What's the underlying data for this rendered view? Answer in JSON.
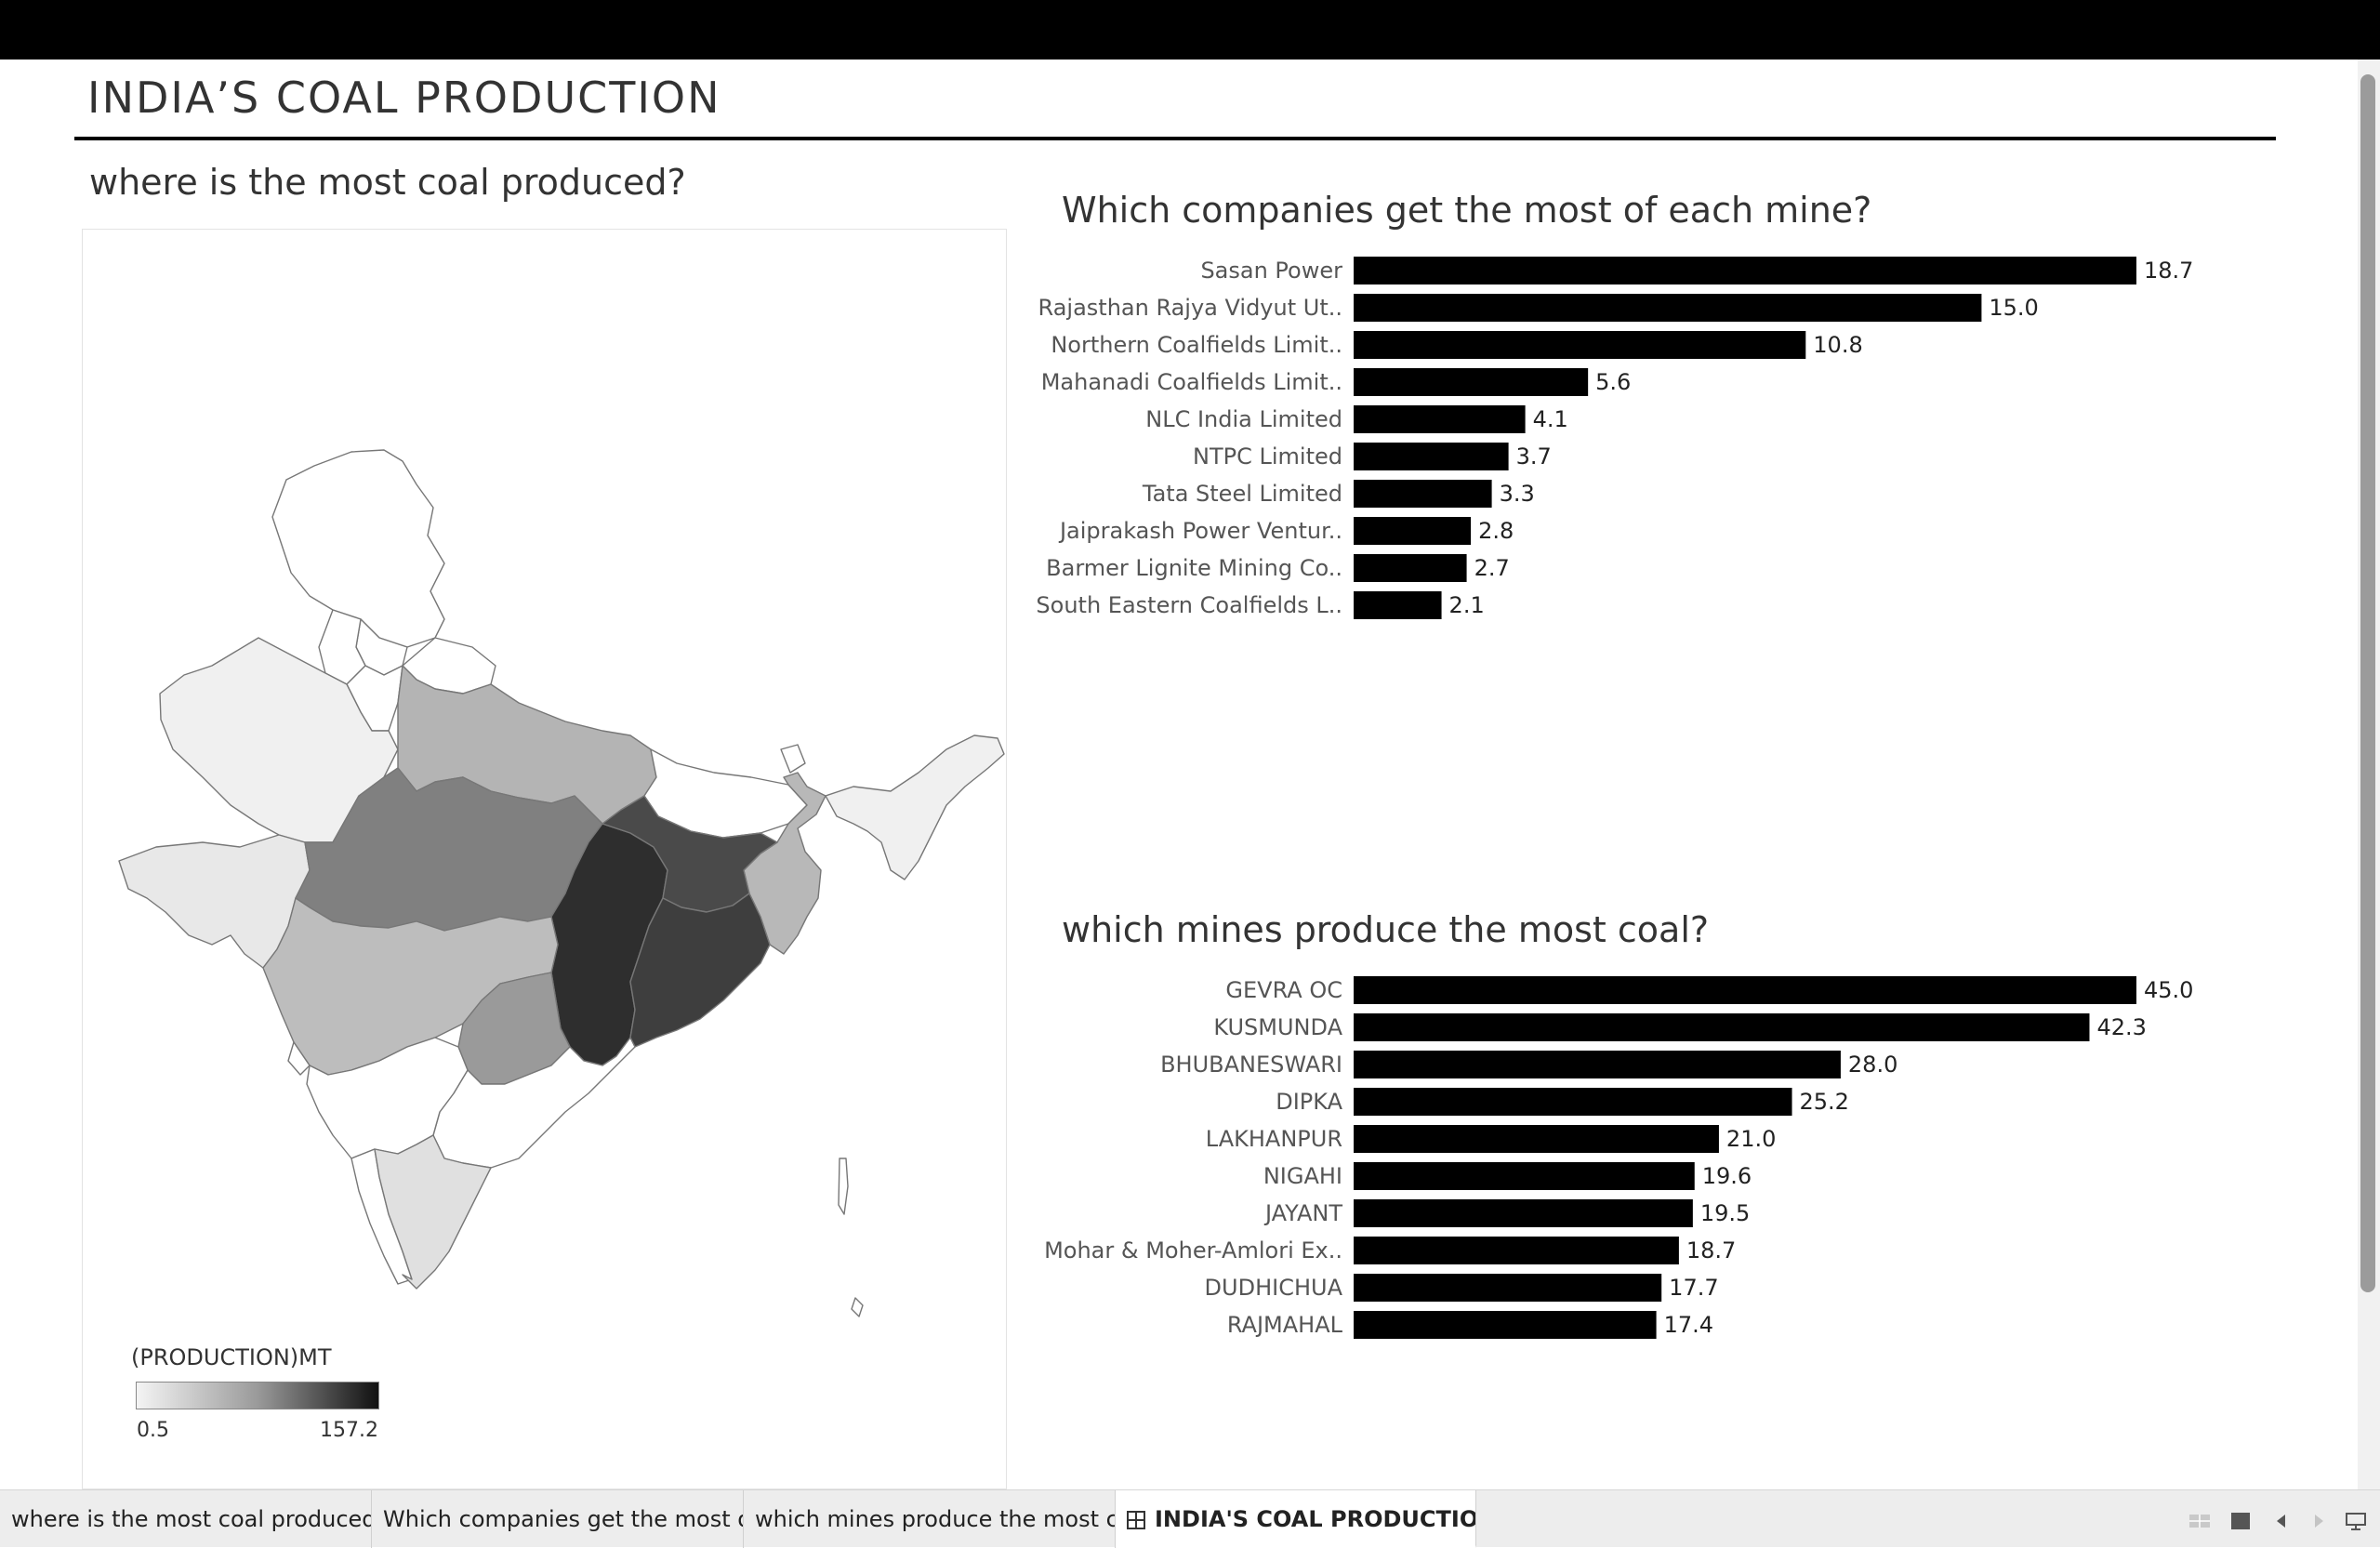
{
  "dashboard": {
    "title": "INDIA’S COAL PRODUCTION"
  },
  "map": {
    "title": "where is the most coal produced?",
    "legend": {
      "title": "(PRODUCTION)MT",
      "min_label": "0.5",
      "max_label": "157.2"
    },
    "colors": {
      "low": "#f4f4f4",
      "mid": "#9a9a9a",
      "high": "#111111",
      "border": "#777777"
    }
  },
  "chart_data": [
    {
      "type": "bar",
      "orientation": "horizontal",
      "title": "Which companies get the most of each mine?",
      "categories": [
        "Sasan Power",
        "Rajasthan Rajya Vidyut Ut..",
        "Northern Coalfields Limit..",
        "Mahanadi Coalfields Limit..",
        "NLC India Limited",
        "NTPC Limited",
        "Tata Steel Limited",
        "Jaiprakash Power Ventur..",
        "Barmer Lignite Mining Co..",
        "South Eastern Coalfields L.."
      ],
      "values": [
        18.7,
        15.0,
        10.8,
        5.6,
        4.1,
        3.7,
        3.3,
        2.8,
        2.7,
        2.1
      ],
      "value_labels": [
        "18.7",
        "15.0",
        "10.8",
        "5.6",
        "4.1",
        "3.7",
        "3.3",
        "2.8",
        "2.7",
        "2.1"
      ],
      "xlim": [
        0,
        18.7
      ],
      "bar_color": "#000000"
    },
    {
      "type": "bar",
      "orientation": "horizontal",
      "title": "which mines produce the most coal?",
      "categories": [
        "GEVRA OC",
        "KUSMUNDA",
        "BHUBANESWARI",
        "DIPKA",
        "LAKHANPUR",
        "NIGAHI",
        "JAYANT",
        "Mohar & Moher-Amlori Ex..",
        "DUDHICHUA",
        "RAJMAHAL"
      ],
      "values": [
        45.0,
        42.3,
        28.0,
        25.2,
        21.0,
        19.6,
        19.5,
        18.7,
        17.7,
        17.4
      ],
      "value_labels": [
        "45.0",
        "42.3",
        "28.0",
        "25.2",
        "21.0",
        "19.6",
        "19.5",
        "18.7",
        "17.7",
        "17.4"
      ],
      "xlim": [
        0,
        45.0
      ],
      "bar_color": "#000000"
    }
  ],
  "tabs": [
    {
      "label": "where is the most coal produced?",
      "active": false
    },
    {
      "label": "Which companies get the most o...",
      "active": false
    },
    {
      "label": "which mines produce the most c...",
      "active": false
    },
    {
      "label": "INDIA'S COAL PRODUCTION",
      "active": true
    }
  ],
  "footer_icons": [
    "grid-view-icon",
    "single-view-icon",
    "previous-arrow-icon",
    "next-arrow-icon",
    "presentation-icon"
  ]
}
